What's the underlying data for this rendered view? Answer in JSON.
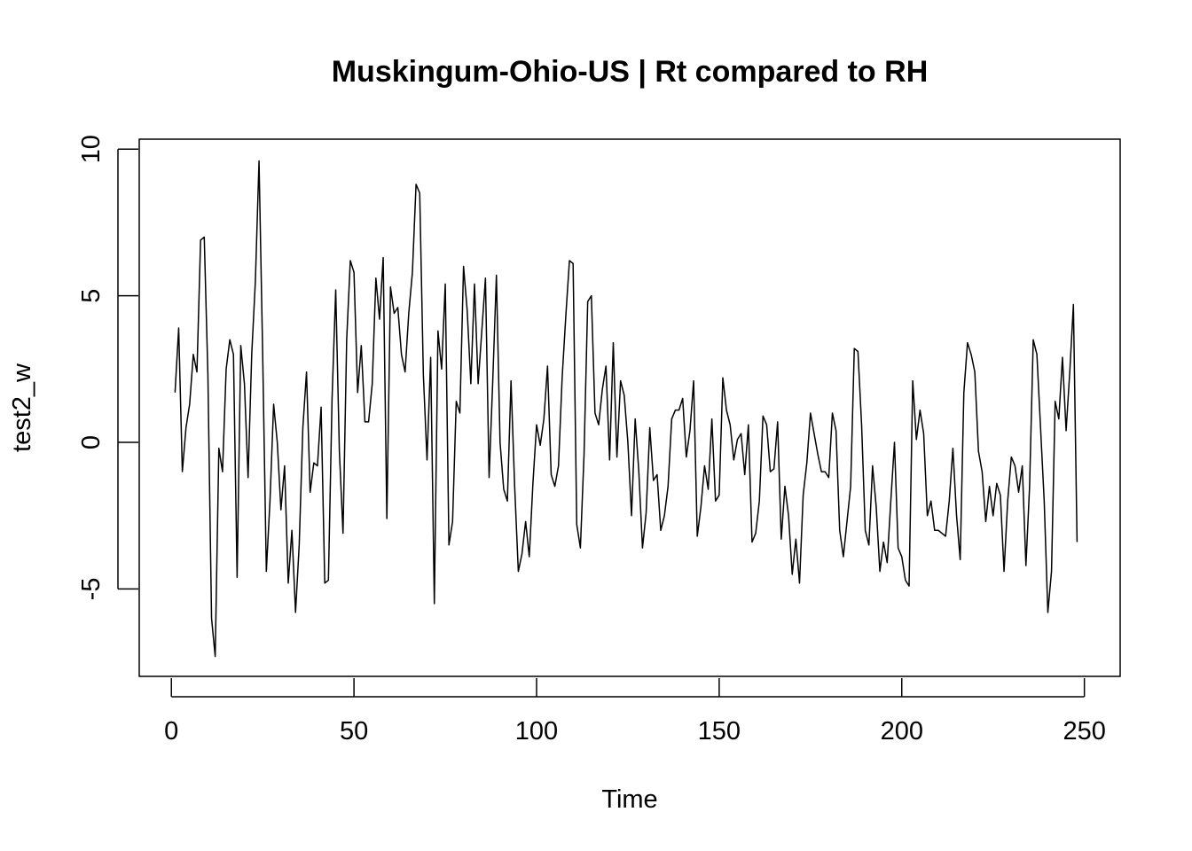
{
  "chart_data": {
    "type": "line",
    "title": "Muskingum-Ohio-US | Rt compared to RH",
    "xlabel": "Time",
    "ylabel": "test2_w",
    "xlim": [
      -8.8,
      259.8
    ],
    "ylim": [
      -7.98,
      10.34
    ],
    "xticks": [
      0,
      50,
      100,
      150,
      200,
      250
    ],
    "yticks": [
      -5,
      0,
      5,
      10
    ],
    "xtick_labels": [
      "0",
      "50",
      "100",
      "150",
      "200",
      "250"
    ],
    "ytick_labels": [
      "-5",
      "0",
      "5",
      "10"
    ],
    "grid": false,
    "legend": "none",
    "line_color": "#000000",
    "series": [
      {
        "x_start": 1,
        "values": [
          1.7,
          3.9,
          -1.0,
          0.5,
          1.3,
          3.0,
          2.4,
          6.9,
          7.0,
          2.3,
          -6.0,
          -7.3,
          -0.2,
          -1.0,
          2.5,
          3.5,
          3.0,
          -4.6,
          3.3,
          2.0,
          -1.2,
          3.0,
          5.5,
          9.6,
          3.0,
          -4.4,
          -2.0,
          1.3,
          0.0,
          -2.3,
          -0.8,
          -4.8,
          -3.0,
          -5.8,
          -3.5,
          0.5,
          2.4,
          -1.7,
          -0.7,
          -0.8,
          1.2,
          -4.8,
          -4.7,
          1.5,
          5.2,
          -0.3,
          -3.1,
          3.5,
          6.2,
          5.8,
          1.7,
          3.3,
          0.7,
          0.7,
          2.0,
          5.6,
          4.2,
          6.3,
          -2.6,
          5.3,
          4.4,
          4.6,
          3.0,
          2.4,
          4.4,
          5.8,
          8.8,
          8.5,
          2.3,
          -0.6,
          2.9,
          -5.5,
          3.8,
          2.5,
          5.4,
          -3.5,
          -2.7,
          1.4,
          1.0,
          6.0,
          4.5,
          2.0,
          5.4,
          2.0,
          3.8,
          5.6,
          -1.2,
          2.1,
          5.7,
          0.0,
          -1.6,
          -2.0,
          2.1,
          -1.5,
          -4.4,
          -3.8,
          -2.7,
          -3.9,
          -1.4,
          0.6,
          -0.1,
          0.8,
          2.6,
          -1.1,
          -1.5,
          -0.8,
          2.2,
          4.3,
          6.2,
          6.1,
          -2.8,
          -3.6,
          -0.4,
          4.8,
          5.0,
          1.0,
          0.6,
          1.8,
          2.6,
          -0.6,
          3.4,
          -0.5,
          2.1,
          1.6,
          0.0,
          -2.5,
          0.8,
          -1.0,
          -3.6,
          -2.4,
          0.5,
          -1.3,
          -1.1,
          -3.0,
          -2.5,
          -1.5,
          0.8,
          1.1,
          1.1,
          1.5,
          -0.5,
          0.4,
          2.1,
          -3.2,
          -2.2,
          -0.8,
          -1.6,
          0.8,
          -2.0,
          -1.8,
          2.2,
          1.1,
          0.6,
          -0.6,
          0.1,
          0.3,
          -1.1,
          0.6,
          -3.4,
          -3.1,
          -2.0,
          0.9,
          0.6,
          -1.0,
          -0.9,
          0.7,
          -3.3,
          -1.5,
          -2.5,
          -4.5,
          -3.3,
          -4.8,
          -1.8,
          -0.7,
          1.0,
          0.3,
          -0.4,
          -1.0,
          -1.0,
          -1.2,
          1.0,
          0.4,
          -3.0,
          -3.9,
          -2.7,
          -1.5,
          3.2,
          3.1,
          0.6,
          -3.0,
          -3.5,
          -0.8,
          -2.2,
          -4.4,
          -3.4,
          -4.1,
          -2.0,
          0.0,
          -3.6,
          -3.9,
          -4.7,
          -4.9,
          2.1,
          0.1,
          1.1,
          0.3,
          -2.5,
          -2.0,
          -3.0,
          -3.0,
          -3.1,
          -3.2,
          -2.0,
          -0.2,
          -2.5,
          -4.0,
          1.7,
          3.4,
          3.0,
          2.4,
          -0.3,
          -1.0,
          -2.7,
          -1.5,
          -2.5,
          -1.4,
          -1.8,
          -4.4,
          -2.0,
          -0.5,
          -0.8,
          -1.7,
          -0.8,
          -4.2,
          -1.5,
          3.5,
          3.0,
          0.5,
          -2.0,
          -5.8,
          -4.4,
          1.4,
          0.8,
          2.9,
          0.4,
          2.4,
          4.7,
          -3.4
        ]
      }
    ]
  }
}
